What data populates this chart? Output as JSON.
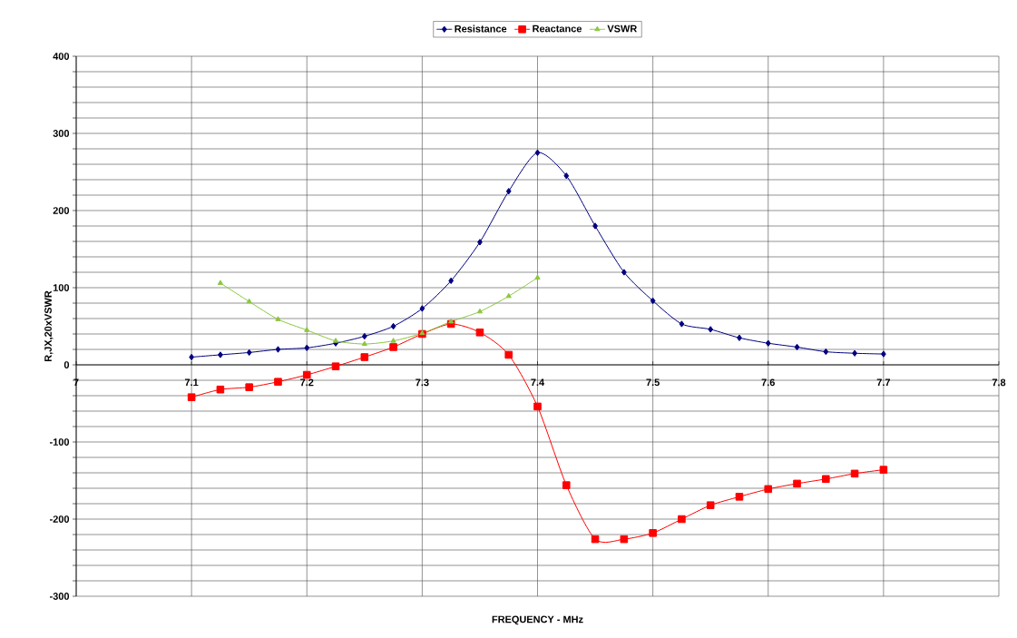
{
  "chart_data": {
    "type": "line",
    "xlabel": "FREQUENCY - MHz",
    "ylabel": "R,JX,20xVSWR",
    "xlim": [
      7,
      7.8
    ],
    "xticks": [
      7,
      7.1,
      7.2,
      7.3,
      7.4,
      7.5,
      7.6,
      7.7,
      7.8
    ],
    "ylim": [
      -300,
      400
    ],
    "yticks": [
      -300,
      {
        "value": -280,
        "label": null
      },
      {
        "value": -260,
        "label": null
      },
      {
        "value": -240,
        "label": null
      },
      {
        "value": -220,
        "label": null
      },
      -200,
      {
        "value": -180,
        "label": null
      },
      {
        "value": -160,
        "label": null
      },
      {
        "value": -140,
        "label": null
      },
      {
        "value": -120,
        "label": null
      },
      -100,
      {
        "value": -80,
        "label": null
      },
      {
        "value": -60,
        "label": null
      },
      {
        "value": -40,
        "label": null
      },
      {
        "value": -20,
        "label": null
      },
      0,
      {
        "value": 20,
        "label": null
      },
      {
        "value": 40,
        "label": null
      },
      {
        "value": 60,
        "label": null
      },
      {
        "value": 80,
        "label": null
      },
      100,
      {
        "value": 120,
        "label": null
      },
      {
        "value": 140,
        "label": null
      },
      {
        "value": 160,
        "label": null
      },
      {
        "value": 180,
        "label": null
      },
      200,
      {
        "value": 220,
        "label": null
      },
      {
        "value": 240,
        "label": null
      },
      {
        "value": 260,
        "label": null
      },
      {
        "value": 280,
        "label": null
      },
      300,
      {
        "value": 320,
        "label": null
      },
      {
        "value": 340,
        "label": null
      },
      {
        "value": 360,
        "label": null
      },
      {
        "value": 380,
        "label": null
      },
      400
    ],
    "grid": true,
    "legend": "top",
    "series": [
      {
        "name": "Resistance",
        "color": "#000080",
        "marker": "diamond",
        "x": [
          7.1,
          7.125,
          7.15,
          7.175,
          7.2,
          7.225,
          7.25,
          7.275,
          7.3,
          7.325,
          7.35,
          7.375,
          7.4,
          7.425,
          7.45,
          7.475,
          7.5,
          7.525,
          7.55,
          7.575,
          7.6,
          7.625,
          7.65,
          7.675,
          7.7
        ],
        "values": [
          10,
          13,
          16,
          20,
          22,
          28,
          37,
          50,
          73,
          109,
          159,
          225,
          275,
          245,
          180,
          120,
          83,
          53,
          46,
          35,
          28,
          23,
          17,
          15,
          14
        ]
      },
      {
        "name": "Reactance",
        "color": "#ff0000",
        "marker": "square",
        "x": [
          7.1,
          7.125,
          7.15,
          7.175,
          7.2,
          7.225,
          7.25,
          7.275,
          7.3,
          7.325,
          7.35,
          7.375,
          7.4,
          7.425,
          7.45,
          7.475,
          7.5,
          7.525,
          7.55,
          7.575,
          7.6,
          7.625,
          7.65,
          7.675,
          7.7
        ],
        "values": [
          -42,
          -32,
          -29,
          -22,
          -13,
          -2,
          10,
          23,
          40,
          53,
          42,
          13,
          -54,
          -156,
          -226,
          -226,
          -218,
          -200,
          -182,
          -171,
          -161,
          -154,
          -148,
          -141,
          -136
        ]
      },
      {
        "name": "VSWR",
        "color": "#8cc63f",
        "marker": "triangle",
        "x": [
          7.125,
          7.15,
          7.175,
          7.2,
          7.225,
          7.25,
          7.275,
          7.3,
          7.325,
          7.35,
          7.375,
          7.4
        ],
        "values": [
          106,
          82,
          59,
          45,
          31,
          27,
          31,
          41,
          56,
          69,
          89,
          113
        ]
      }
    ]
  }
}
